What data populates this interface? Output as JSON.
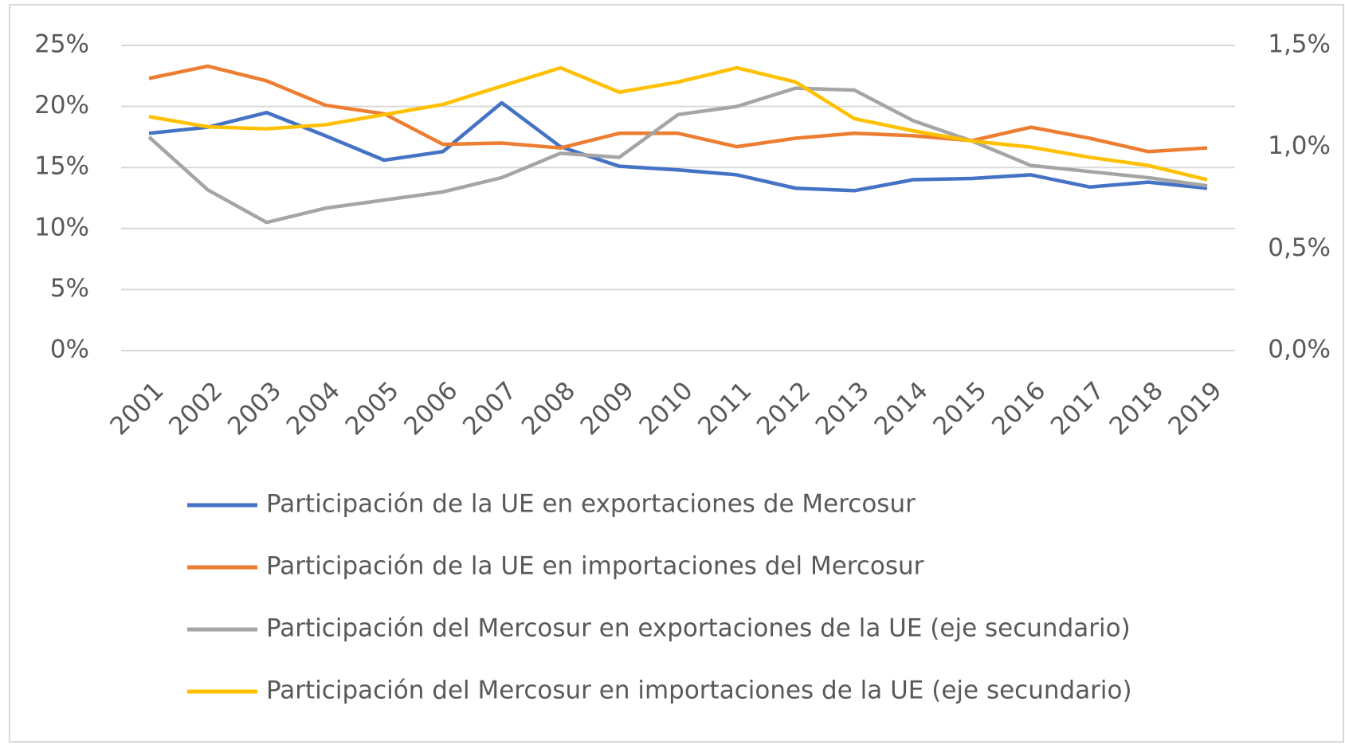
{
  "chart_data": {
    "type": "line",
    "categories": [
      "2001",
      "2002",
      "2003",
      "2004",
      "2005",
      "2006",
      "2007",
      "2008",
      "2009",
      "2010",
      "2011",
      "2012",
      "2013",
      "2014",
      "2015",
      "2016",
      "2017",
      "2018",
      "2019"
    ],
    "series": [
      {
        "name": "Participación de la UE en exportaciones de Mercosur",
        "color": "#4472c4",
        "values": [
          17.8,
          18.3,
          19.5,
          17.6,
          15.6,
          16.3,
          20.3,
          16.7,
          15.1,
          14.8,
          14.4,
          13.3,
          13.1,
          14.0,
          14.1,
          14.4,
          13.4,
          13.8,
          13.3
        ]
      },
      {
        "name": "Participación de la UE en importaciones del Mercosur",
        "color": "#ed7d31",
        "values": [
          22.3,
          23.3,
          22.1,
          20.1,
          19.4,
          16.9,
          17.0,
          16.6,
          17.8,
          17.8,
          16.7,
          17.4,
          17.8,
          17.6,
          17.2,
          18.3,
          17.4,
          16.3,
          16.6
        ]
      },
      {
        "name": "Participación del Mercosur en exportaciones de la UE (eje secundario)",
        "color": "#a5a5a5",
        "axis": "y2",
        "values": [
          1.05,
          0.79,
          0.63,
          0.7,
          0.74,
          0.78,
          0.85,
          0.97,
          0.95,
          1.16,
          1.2,
          1.29,
          1.28,
          1.13,
          1.03,
          0.91,
          0.88,
          0.85,
          0.81
        ]
      },
      {
        "name": "Participación del Mercosur en importaciones de la UE (eje secundario)",
        "color": "#ffc000",
        "axis": "y2",
        "values": [
          1.15,
          1.1,
          1.09,
          1.11,
          1.16,
          1.21,
          1.3,
          1.39,
          1.27,
          1.32,
          1.39,
          1.32,
          1.14,
          1.08,
          1.03,
          1.0,
          0.95,
          0.91,
          0.84
        ]
      }
    ],
    "ylim": [
      0,
      25
    ],
    "yticks": [
      {
        "value": 0,
        "label": "0%"
      },
      {
        "value": 5,
        "label": "5%"
      },
      {
        "value": 10,
        "label": "10%"
      },
      {
        "value": 15,
        "label": "15%"
      },
      {
        "value": 20,
        "label": "20%"
      },
      {
        "value": 25,
        "label": "25%"
      }
    ],
    "y2lim": [
      0,
      1.5
    ],
    "y2ticks": [
      {
        "value": 0,
        "label": "0,0%"
      },
      {
        "value": 0.5,
        "label": "0,5%"
      },
      {
        "value": 1,
        "label": "1,0%"
      },
      {
        "value": 1.5,
        "label": "1,5%"
      }
    ],
    "grid": true,
    "legend": "bottom"
  }
}
